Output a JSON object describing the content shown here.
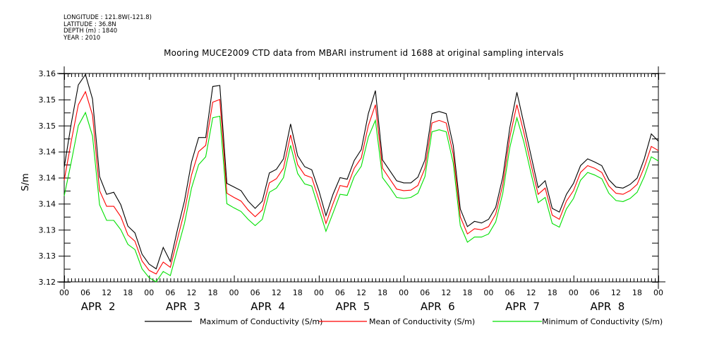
{
  "header": {
    "meta_lines": [
      "LONGITUDE : 121.8W(-121.8)",
      "LATITUDE : 36.8N",
      "DEPTH (m) : 1840",
      "YEAR : 2010"
    ],
    "title": "Mooring MUCE2009 CTD data from MBARI instrument id 1688 at original sampling intervals"
  },
  "chart_data": {
    "type": "line",
    "title": "Mooring MUCE2009 CTD data from MBARI instrument id 1688 at original sampling intervals",
    "xlabel": "",
    "ylabel": "S/m",
    "x_unit": "hours since 00 APR 2 2010",
    "xlim": [
      0,
      168
    ],
    "ylim": [
      3.12,
      3.16
    ],
    "grid": false,
    "legend_position": "bottom",
    "y_ticks": [
      3.12,
      3.125,
      3.13,
      3.135,
      3.14,
      3.145,
      3.15,
      3.155,
      3.16
    ],
    "y_tick_labels": [
      "3.12",
      "3.13",
      "3.13",
      "3.14",
      "3.14",
      "3.14",
      "3.15",
      "3.15",
      "3.16"
    ],
    "x_tick_labels": [
      "00",
      "06",
      "12",
      "18",
      "00",
      "06",
      "12",
      "18",
      "00",
      "06",
      "12",
      "18",
      "00",
      "06",
      "12",
      "18",
      "00",
      "06",
      "12",
      "18",
      "00",
      "06",
      "12",
      "18",
      "00",
      "06",
      "12",
      "18",
      "00"
    ],
    "day_labels": [
      "APR  2",
      "APR  3",
      "APR  4",
      "APR  5",
      "APR  6",
      "APR  7",
      "APR  8"
    ],
    "x": [
      0,
      2,
      4,
      6,
      8,
      10,
      12,
      14,
      16,
      18,
      20,
      22,
      24,
      26,
      28,
      30,
      32,
      34,
      36,
      38,
      40,
      42,
      44,
      46,
      48,
      50,
      52,
      54,
      56,
      58,
      60,
      62,
      64,
      66,
      68,
      70,
      72,
      74,
      76,
      78,
      80,
      82,
      84,
      86,
      88,
      90,
      92,
      94,
      96,
      98,
      100,
      102,
      104,
      106,
      108,
      110,
      112,
      114,
      116,
      118,
      120,
      122,
      124,
      126,
      128,
      130,
      132,
      134,
      136,
      138,
      140,
      142,
      144,
      146,
      148,
      150,
      152,
      154,
      156,
      158,
      160,
      162,
      164,
      166,
      168
    ],
    "series": [
      {
        "name": "Maximum of Conductivity (S/m)",
        "color": "#000000",
        "values": [
          3.142,
          3.1504,
          3.1578,
          3.1598,
          3.1551,
          3.1402,
          3.1368,
          3.1372,
          3.1348,
          3.1307,
          3.1294,
          3.1253,
          3.1234,
          3.1225,
          3.1266,
          3.1239,
          3.13,
          3.1355,
          3.143,
          3.1477,
          3.1477,
          3.1575,
          3.1577,
          3.1389,
          3.1382,
          3.1375,
          3.1355,
          3.1341,
          3.1355,
          3.1409,
          3.1416,
          3.1436,
          3.1503,
          3.1442,
          3.1421,
          3.1415,
          3.1375,
          3.1327,
          3.1368,
          3.14,
          3.1397,
          3.1433,
          3.1454,
          3.1523,
          3.1567,
          3.1434,
          3.1414,
          3.1394,
          3.139,
          3.139,
          3.1401,
          3.1434,
          3.1523,
          3.1527,
          3.1523,
          3.1462,
          3.134,
          3.1306,
          3.1316,
          3.1313,
          3.132,
          3.1343,
          3.1401,
          3.1496,
          3.1564,
          3.1503,
          3.1442,
          3.1381,
          3.1394,
          3.1341,
          3.1334,
          3.1368,
          3.1389,
          3.1423,
          3.1436,
          3.143,
          3.1423,
          3.1396,
          3.1382,
          3.138,
          3.1387,
          3.1399,
          3.1436,
          3.1484,
          3.147
        ]
      },
      {
        "name": "Mean of Conductivity (S/m)",
        "color": "#ff0000",
        "values": [
          3.1395,
          3.147,
          3.154,
          3.1565,
          3.152,
          3.1375,
          3.1345,
          3.1345,
          3.1325,
          3.129,
          3.1278,
          3.124,
          3.1222,
          3.1215,
          3.1238,
          3.1228,
          3.1282,
          3.1335,
          3.1405,
          3.145,
          3.1462,
          3.1545,
          3.155,
          3.137,
          3.1362,
          3.1355,
          3.1338,
          3.1325,
          3.1338,
          3.139,
          3.1398,
          3.1418,
          3.1482,
          3.1425,
          3.1405,
          3.14,
          3.1358,
          3.1312,
          3.135,
          3.1385,
          3.1382,
          3.1418,
          3.1438,
          3.15,
          3.154,
          3.1418,
          3.1398,
          3.1378,
          3.1375,
          3.1376,
          3.1385,
          3.1418,
          3.1505,
          3.151,
          3.1505,
          3.1445,
          3.1325,
          3.1292,
          3.1302,
          3.13,
          3.1306,
          3.133,
          3.1386,
          3.1478,
          3.154,
          3.1486,
          3.1425,
          3.1368,
          3.138,
          3.1328,
          3.132,
          3.1355,
          3.1375,
          3.141,
          3.1423,
          3.1418,
          3.141,
          3.1384,
          3.137,
          3.1368,
          3.1375,
          3.1387,
          3.142,
          3.146,
          3.1452
        ]
      },
      {
        "name": "Minimum of Conductivity (S/m)",
        "color": "#00e000",
        "values": [
          3.1365,
          3.143,
          3.15,
          3.1525,
          3.148,
          3.1348,
          3.1318,
          3.1318,
          3.13,
          3.1272,
          3.1262,
          3.1225,
          3.1208,
          3.12,
          3.122,
          3.1212,
          3.1262,
          3.1312,
          3.138,
          3.1425,
          3.144,
          3.1515,
          3.1518,
          3.135,
          3.1342,
          3.1335,
          3.132,
          3.1308,
          3.132,
          3.1372,
          3.138,
          3.14,
          3.1462,
          3.1408,
          3.1388,
          3.1384,
          3.134,
          3.1297,
          3.1332,
          3.1368,
          3.1366,
          3.1402,
          3.1422,
          3.1478,
          3.151,
          3.14,
          3.1382,
          3.1362,
          3.136,
          3.1362,
          3.137,
          3.1402,
          3.1488,
          3.1492,
          3.1488,
          3.1428,
          3.1308,
          3.1276,
          3.1286,
          3.1286,
          3.1292,
          3.1315,
          3.137,
          3.1458,
          3.1515,
          3.1468,
          3.1408,
          3.1352,
          3.1362,
          3.1312,
          3.1305,
          3.134,
          3.136,
          3.1395,
          3.141,
          3.1405,
          3.1398,
          3.137,
          3.1356,
          3.1354,
          3.136,
          3.1372,
          3.1402,
          3.144,
          3.1432
        ]
      }
    ]
  },
  "legend": {
    "items": [
      {
        "label": "Maximum of Conductivity (S/m)",
        "color": "#000000"
      },
      {
        "label": "Mean of Conductivity (S/m)",
        "color": "#ff0000"
      },
      {
        "label": "Minimum of Conductivity (S/m)",
        "color": "#00e000"
      }
    ]
  }
}
